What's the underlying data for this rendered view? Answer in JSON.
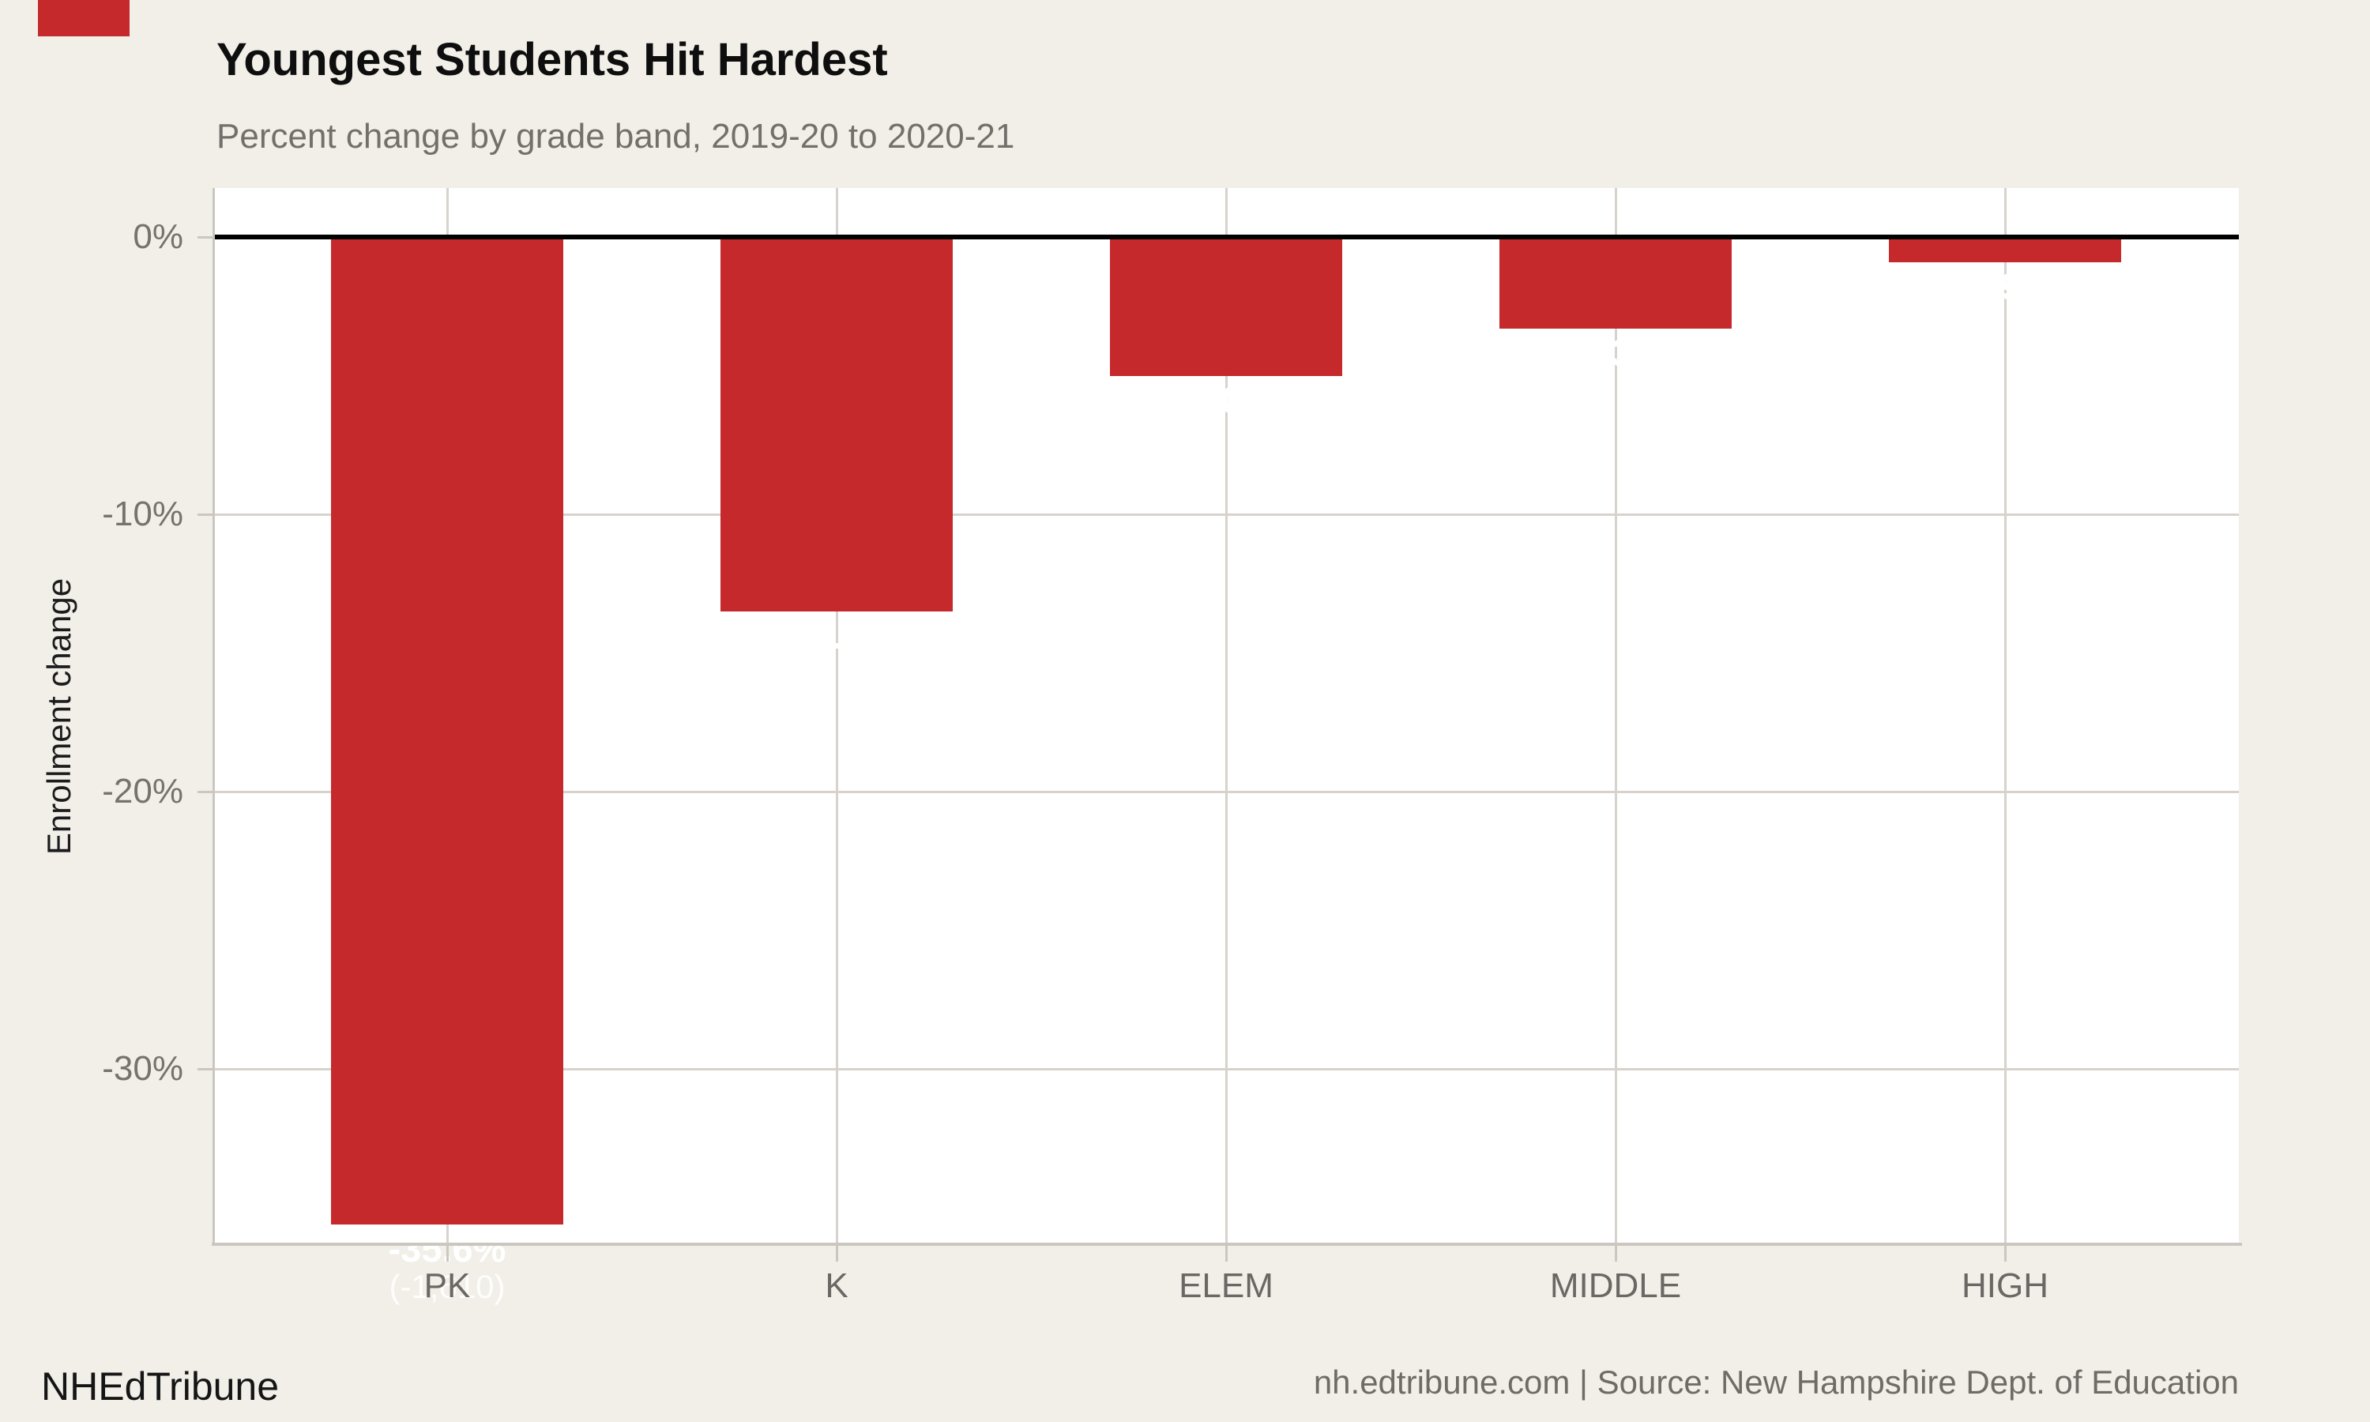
{
  "chart_data": {
    "type": "bar",
    "title": "Youngest Students Hit Hardest",
    "subtitle": "Percent change by grade band, 2019-20 to 2020-21",
    "ylabel": "Enrollment change",
    "categories": [
      "PK",
      "K",
      "ELEM",
      "MIDDLE",
      "HIGH"
    ],
    "values": [
      -35.6,
      -13.5,
      -5.0,
      -3.3,
      -0.9
    ],
    "data_labels": [
      {
        "pct": "-35.6%",
        "count": "(-1,610)",
        "visible": true
      },
      {
        "pct": "-13.5%",
        "count": "",
        "visible": false
      },
      {
        "pct": "-5.0%",
        "count": "",
        "visible": false
      },
      {
        "pct": "-3.3%",
        "count": "",
        "visible": false
      },
      {
        "pct": "-0.9%",
        "count": "",
        "visible": false
      }
    ],
    "yticks": [
      {
        "value": 0,
        "label": "0%"
      },
      {
        "value": -10,
        "label": "-10%"
      },
      {
        "value": -20,
        "label": "-20%"
      },
      {
        "value": -30,
        "label": "-30%"
      }
    ],
    "ylim": [
      -36.4,
      1.8
    ],
    "grid": true,
    "legend": "none",
    "bar_color": "#c5292b",
    "zero_line_color": "#000000"
  },
  "footer": {
    "brand": "NHEdTribune",
    "source_line": "nh.edtribune.com | Source: New Hampshire Dept. of Education"
  },
  "colors": {
    "background": "#f2efe9",
    "plot_background": "#ffffff",
    "accent": "#c5292b",
    "grid": "#d7d3cc",
    "axis": "#cbc7c0",
    "tick_label": "#76726d",
    "title": "#0e0e0e",
    "subtitle": "#73706b",
    "data_label": "#ffffff"
  }
}
